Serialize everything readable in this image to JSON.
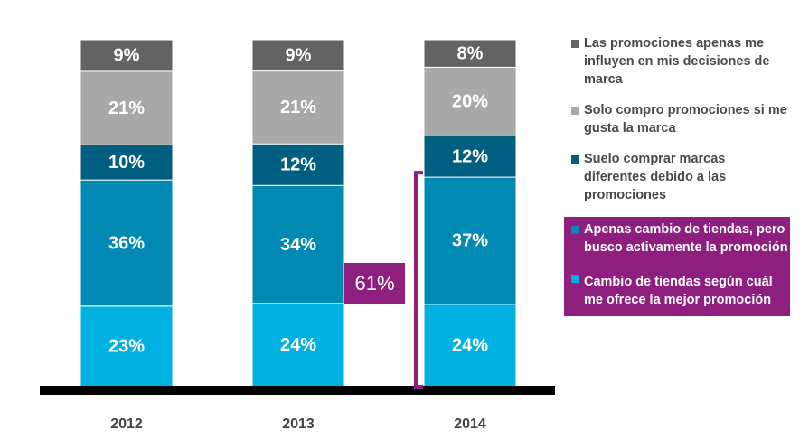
{
  "chart_data": {
    "type": "bar",
    "stacked": true,
    "categories": [
      "2012",
      "2013",
      "2014"
    ],
    "series": [
      {
        "name": "Cambio de tiendas según cuál me ofrece la mejor promoción",
        "values": [
          23,
          24,
          24
        ],
        "color": "#00b0e0",
        "label_color": "#ffffff"
      },
      {
        "name": "Apenas cambio de tiendas, pero busco activamente la promoción",
        "values": [
          36,
          34,
          37
        ],
        "color": "#0089b3",
        "label_color": "#ffffff"
      },
      {
        "name": "Suelo comprar marcas diferentes debido a las promociones",
        "values": [
          10,
          12,
          12
        ],
        "color": "#005e80",
        "label_color": "#ffffff"
      },
      {
        "name": "Solo compro promociones si me gusta la marca",
        "values": [
          21,
          21,
          20
        ],
        "color": "#a8a8a8",
        "label_color": "#ffffff"
      },
      {
        "name": "Las promociones apenas me influyen en mis decisiones de marca",
        "values": [
          9,
          9,
          8
        ],
        "color": "#636363",
        "label_color": "#ffffff"
      }
    ],
    "value_suffix": "%",
    "annotation": {
      "text": "61%",
      "category": "2014",
      "covers_series": [
        0,
        1
      ]
    },
    "ylim": [
      0,
      100
    ]
  },
  "legend": [
    {
      "label": "Las promociones apenas me influyen en mis decisiones de marca",
      "color": "#636363",
      "highlighted": false
    },
    {
      "label": "Solo compro promociones si me gusta la marca",
      "color": "#a8a8a8",
      "highlighted": false
    },
    {
      "label": "Suelo comprar marcas diferentes debido a las promociones",
      "color": "#005e80",
      "highlighted": false
    },
    {
      "label": "Apenas cambio de tiendas, pero busco activamente la promoción",
      "color": "#0089b3",
      "highlighted": true
    },
    {
      "label": "Cambio de tiendas según cuál me ofrece la mejor promoción",
      "color": "#00b0e0",
      "highlighted": true
    }
  ]
}
